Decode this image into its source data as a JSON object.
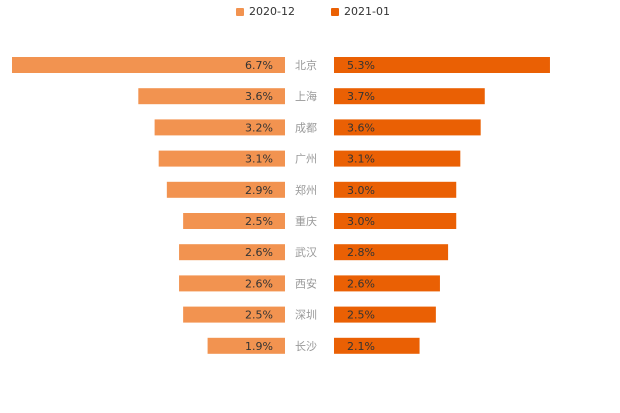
{
  "colors": {
    "left": "#f29350",
    "right": "#ea6004",
    "label_text": "#333333",
    "city_text": "#999999"
  },
  "chart_data": {
    "type": "bar",
    "orientation": "horizontal-mirrored",
    "title": "",
    "legend_placement": "top-center",
    "categories": [
      "北京",
      "上海",
      "成都",
      "广州",
      "郑州",
      "重庆",
      "武汉",
      "西安",
      "深圳",
      "长沙"
    ],
    "series": [
      {
        "name": "2020-12",
        "side": "left",
        "values": [
          6.7,
          3.6,
          3.2,
          3.1,
          2.9,
          2.5,
          2.6,
          2.6,
          2.5,
          1.9
        ],
        "labels": [
          "6.7%",
          "3.6%",
          "3.2%",
          "3.1%",
          "2.9%",
          "2.5%",
          "2.6%",
          "2.6%",
          "2.5%",
          "1.9%"
        ]
      },
      {
        "name": "2021-01",
        "side": "right",
        "values": [
          5.3,
          3.7,
          3.6,
          3.1,
          3.0,
          3.0,
          2.8,
          2.6,
          2.5,
          2.1
        ],
        "labels": [
          "5.3%",
          "3.7%",
          "3.6%",
          "3.1%",
          "3.0%",
          "3.0%",
          "2.8%",
          "2.6%",
          "2.5%",
          "2.1%"
        ]
      }
    ],
    "unit": "%"
  }
}
